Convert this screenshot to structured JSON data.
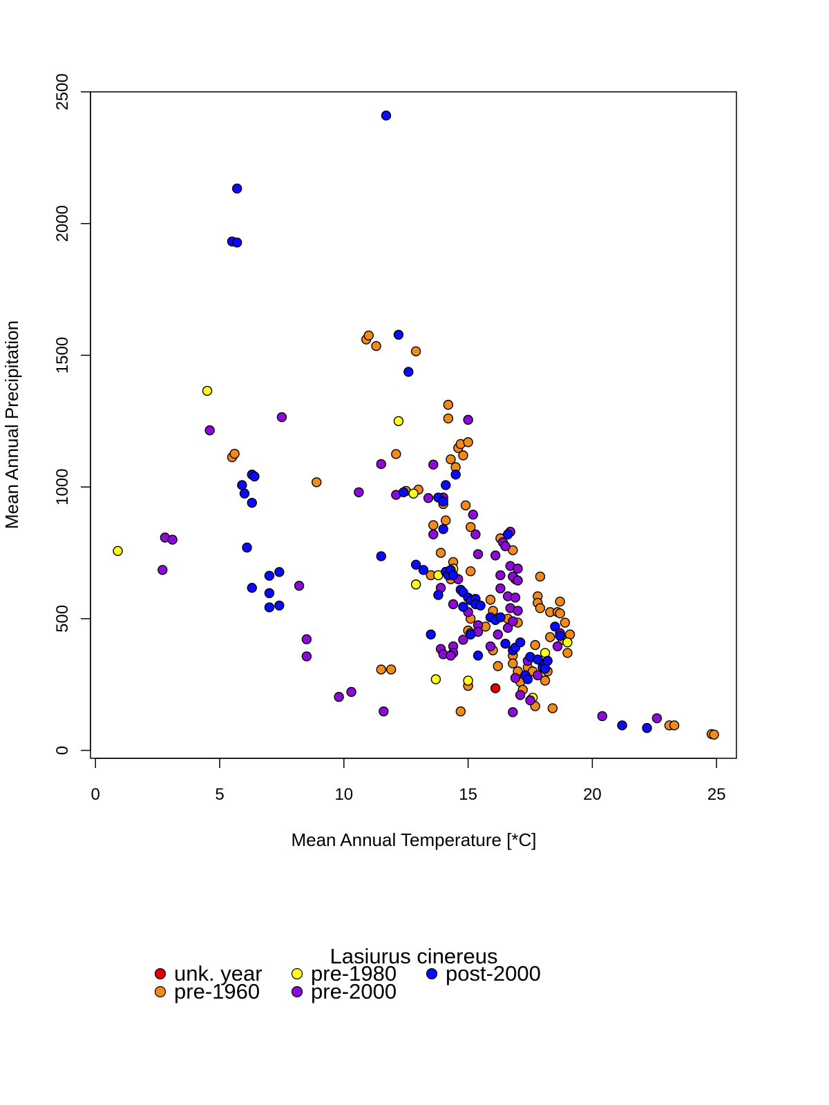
{
  "chart_data": {
    "type": "scatter",
    "title": "",
    "xlabel": "Mean Annual Temperature [*C]",
    "ylabel": "Mean Annual Precipitation",
    "xlim": [
      -0.2,
      25.8
    ],
    "ylim": [
      -30,
      2500
    ],
    "xticks": [
      0,
      5,
      10,
      15,
      20,
      25
    ],
    "yticks": [
      0,
      500,
      1000,
      1500,
      2000,
      2500
    ],
    "grid": false,
    "legend": {
      "title": "Lasiurus cinereus",
      "position": "bottom",
      "entries": [
        "unk. year",
        "pre-1960",
        "pre-1980",
        "pre-2000",
        "post-2000"
      ]
    },
    "series": [
      {
        "name": "unk. year",
        "color": "#e00000",
        "points": [
          [
            16.1,
            236
          ]
        ]
      },
      {
        "name": "pre-1960",
        "color": "#f28a1b",
        "points": [
          [
            5.5,
            1113
          ],
          [
            5.6,
            1126
          ],
          [
            8.9,
            1018
          ],
          [
            10.9,
            1560
          ],
          [
            11.0,
            1575
          ],
          [
            11.3,
            1535
          ],
          [
            12.1,
            1125
          ],
          [
            12.9,
            1515
          ],
          [
            11.5,
            307
          ],
          [
            11.9,
            307
          ],
          [
            13.0,
            990
          ],
          [
            12.5,
            985
          ],
          [
            14.2,
            1312
          ],
          [
            14.2,
            1260
          ],
          [
            14.3,
            1105
          ],
          [
            14.5,
            1075
          ],
          [
            14.6,
            1148
          ],
          [
            14.7,
            1163
          ],
          [
            14.8,
            1120
          ],
          [
            15.0,
            1170
          ],
          [
            14.9,
            930
          ],
          [
            14.0,
            935
          ],
          [
            14.1,
            873
          ],
          [
            13.6,
            855
          ],
          [
            13.9,
            750
          ],
          [
            15.1,
            848
          ],
          [
            15.1,
            680
          ],
          [
            14.4,
            715
          ],
          [
            14.3,
            650
          ],
          [
            13.5,
            665
          ],
          [
            14.7,
            148
          ],
          [
            15.0,
            245
          ],
          [
            15.1,
            500
          ],
          [
            15.0,
            455
          ],
          [
            15.1,
            445
          ],
          [
            15.7,
            470
          ],
          [
            15.9,
            572
          ],
          [
            16.0,
            530
          ],
          [
            16.2,
            320
          ],
          [
            16.0,
            380
          ],
          [
            16.6,
            500
          ],
          [
            16.8,
            760
          ],
          [
            16.3,
            805
          ],
          [
            16.9,
            650
          ],
          [
            17.0,
            485
          ],
          [
            16.8,
            360
          ],
          [
            16.8,
            330
          ],
          [
            17.0,
            300
          ],
          [
            17.1,
            260
          ],
          [
            17.2,
            230
          ],
          [
            17.4,
            315
          ],
          [
            17.6,
            300
          ],
          [
            17.8,
            585
          ],
          [
            17.8,
            560
          ],
          [
            17.9,
            660
          ],
          [
            17.9,
            540
          ],
          [
            17.7,
            400
          ],
          [
            17.7,
            168
          ],
          [
            18.1,
            265
          ],
          [
            18.2,
            300
          ],
          [
            18.3,
            430
          ],
          [
            18.3,
            525
          ],
          [
            18.4,
            160
          ],
          [
            18.6,
            525
          ],
          [
            18.7,
            565
          ],
          [
            18.7,
            520
          ],
          [
            18.8,
            420
          ],
          [
            18.9,
            485
          ],
          [
            19.0,
            370
          ],
          [
            19.1,
            440
          ],
          [
            23.1,
            95
          ],
          [
            23.3,
            95
          ],
          [
            24.8,
            62
          ],
          [
            24.9,
            60
          ]
        ]
      },
      {
        "name": "pre-1980",
        "color": "#ffff1a",
        "points": [
          [
            0.9,
            757
          ],
          [
            4.5,
            1365
          ],
          [
            12.2,
            1250
          ],
          [
            12.8,
            975
          ],
          [
            12.9,
            630
          ],
          [
            13.7,
            270
          ],
          [
            15.0,
            265
          ],
          [
            14.4,
            690
          ],
          [
            17.6,
            200
          ],
          [
            18.1,
            370
          ],
          [
            19.0,
            410
          ],
          [
            13.8,
            665
          ]
        ]
      },
      {
        "name": "pre-2000",
        "color": "#8c0bd6",
        "points": [
          [
            2.7,
            685
          ],
          [
            2.8,
            808
          ],
          [
            3.1,
            800
          ],
          [
            4.6,
            1215
          ],
          [
            7.5,
            1265
          ],
          [
            8.2,
            625
          ],
          [
            8.5,
            422
          ],
          [
            8.5,
            357
          ],
          [
            9.8,
            203
          ],
          [
            10.3,
            222
          ],
          [
            10.6,
            980
          ],
          [
            11.6,
            148
          ],
          [
            11.5,
            1087
          ],
          [
            12.1,
            970
          ],
          [
            13.4,
            958
          ],
          [
            13.6,
            1085
          ],
          [
            13.6,
            820
          ],
          [
            14.0,
            960
          ],
          [
            13.9,
            617
          ],
          [
            14.4,
            555
          ],
          [
            14.4,
            395
          ],
          [
            14.4,
            370
          ],
          [
            13.9,
            385
          ],
          [
            14.0,
            365
          ],
          [
            14.3,
            360
          ],
          [
            14.6,
            650
          ],
          [
            14.8,
            420
          ],
          [
            15.0,
            525
          ],
          [
            15.0,
            1255
          ],
          [
            15.2,
            895
          ],
          [
            15.3,
            820
          ],
          [
            15.4,
            745
          ],
          [
            15.4,
            475
          ],
          [
            15.4,
            450
          ],
          [
            15.9,
            395
          ],
          [
            16.1,
            740
          ],
          [
            16.2,
            440
          ],
          [
            16.3,
            665
          ],
          [
            16.3,
            615
          ],
          [
            16.4,
            790
          ],
          [
            16.5,
            775
          ],
          [
            16.6,
            585
          ],
          [
            16.6,
            465
          ],
          [
            16.7,
            830
          ],
          [
            16.7,
            700
          ],
          [
            16.7,
            540
          ],
          [
            16.8,
            660
          ],
          [
            16.8,
            490
          ],
          [
            16.8,
            145
          ],
          [
            16.9,
            580
          ],
          [
            16.9,
            275
          ],
          [
            17.0,
            690
          ],
          [
            17.0,
            645
          ],
          [
            17.0,
            530
          ],
          [
            17.1,
            210
          ],
          [
            17.3,
            285
          ],
          [
            17.4,
            340
          ],
          [
            17.5,
            190
          ],
          [
            17.8,
            285
          ],
          [
            18.0,
            330
          ],
          [
            18.6,
            395
          ],
          [
            18.7,
            445
          ],
          [
            20.4,
            130
          ],
          [
            22.6,
            122
          ]
        ]
      },
      {
        "name": "post-2000",
        "color": "#0a0aff",
        "points": [
          [
            5.5,
            1932
          ],
          [
            5.7,
            1928
          ],
          [
            5.7,
            2133
          ],
          [
            11.7,
            2410
          ],
          [
            12.2,
            1578
          ],
          [
            12.6,
            1437
          ],
          [
            5.9,
            1007
          ],
          [
            6.0,
            975
          ],
          [
            6.3,
            940
          ],
          [
            6.3,
            1047
          ],
          [
            6.4,
            1040
          ],
          [
            6.1,
            770
          ],
          [
            6.3,
            617
          ],
          [
            7.0,
            663
          ],
          [
            7.0,
            597
          ],
          [
            7.0,
            543
          ],
          [
            7.4,
            677
          ],
          [
            7.4,
            550
          ],
          [
            11.5,
            737
          ],
          [
            12.4,
            980
          ],
          [
            12.9,
            705
          ],
          [
            13.2,
            685
          ],
          [
            13.5,
            440
          ],
          [
            13.8,
            960
          ],
          [
            13.8,
            590
          ],
          [
            14.0,
            945
          ],
          [
            14.0,
            840
          ],
          [
            14.1,
            1007
          ],
          [
            14.1,
            678
          ],
          [
            14.2,
            665
          ],
          [
            14.3,
            685
          ],
          [
            14.4,
            665
          ],
          [
            14.5,
            1047
          ],
          [
            14.7,
            610
          ],
          [
            14.8,
            600
          ],
          [
            14.8,
            545
          ],
          [
            15.0,
            580
          ],
          [
            15.1,
            570
          ],
          [
            15.1,
            440
          ],
          [
            15.3,
            575
          ],
          [
            15.3,
            555
          ],
          [
            15.4,
            360
          ],
          [
            15.5,
            550
          ],
          [
            15.9,
            505
          ],
          [
            16.1,
            495
          ],
          [
            16.3,
            505
          ],
          [
            16.5,
            405
          ],
          [
            16.6,
            820
          ],
          [
            16.8,
            380
          ],
          [
            16.9,
            390
          ],
          [
            17.1,
            410
          ],
          [
            17.3,
            285
          ],
          [
            17.4,
            270
          ],
          [
            17.5,
            355
          ],
          [
            17.8,
            345
          ],
          [
            18.0,
            315
          ],
          [
            18.1,
            330
          ],
          [
            18.1,
            310
          ],
          [
            18.2,
            340
          ],
          [
            18.5,
            470
          ],
          [
            18.7,
            435
          ],
          [
            21.2,
            95
          ],
          [
            22.2,
            85
          ]
        ]
      }
    ]
  }
}
